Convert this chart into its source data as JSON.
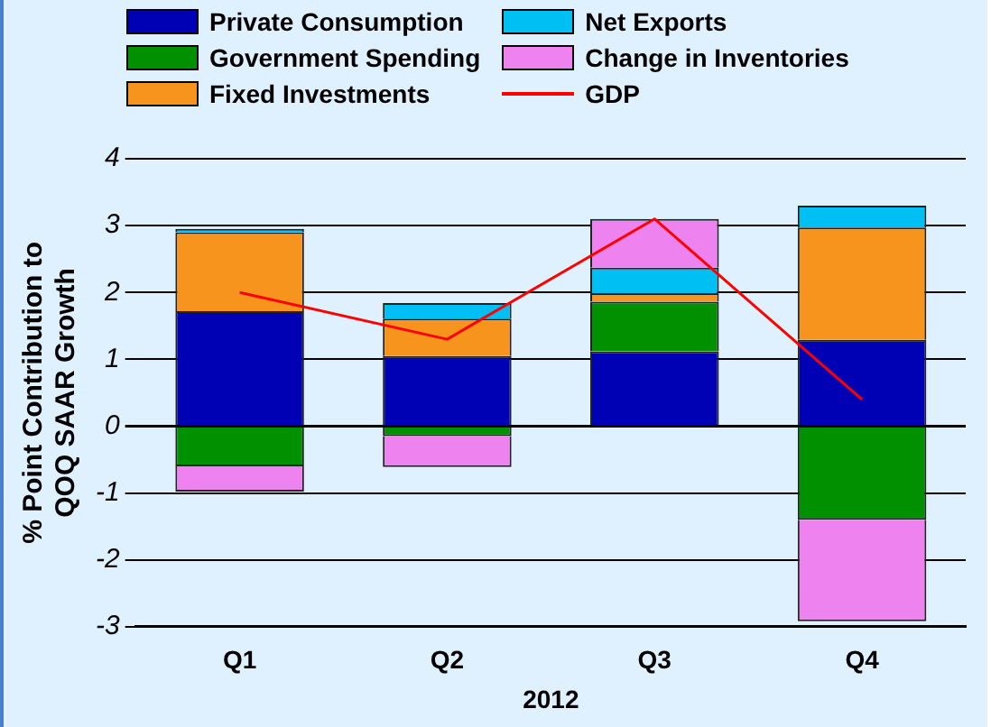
{
  "chart_data": {
    "type": "bar",
    "stacked": true,
    "xlabel": "2012",
    "ylabel": "% Point Contribution to\nQOQ SAAR Growth",
    "categories": [
      "Q1",
      "Q2",
      "Q3",
      "Q4"
    ],
    "series": [
      {
        "name": "Private Consumption",
        "color": "#0000b4",
        "values": [
          1.72,
          1.05,
          1.12,
          1.29
        ]
      },
      {
        "name": "Government Spending",
        "color": "#009000",
        "values": [
          -0.6,
          -0.15,
          0.74,
          -1.4
        ]
      },
      {
        "name": "Fixed Investments",
        "color": "#f7941d",
        "values": [
          1.18,
          0.56,
          0.13,
          1.68
        ]
      },
      {
        "name": "Net Exports",
        "color": "#00bff3",
        "values": [
          0.05,
          0.23,
          0.38,
          0.33
        ]
      },
      {
        "name": "Change in Inventories",
        "color": "#ee82ee",
        "values": [
          -0.38,
          -0.46,
          0.73,
          -1.52
        ]
      },
      {
        "name": "GDP",
        "color": "#ff0000",
        "type": "line",
        "values": [
          2.0,
          1.3,
          3.1,
          0.4
        ]
      }
    ],
    "ylim": [
      -3,
      4
    ],
    "yticks": [
      -3,
      -2,
      -1,
      0,
      1,
      2,
      3,
      4
    ],
    "grid": "y",
    "legend": "top",
    "marker": "none",
    "line_style": "solid"
  }
}
